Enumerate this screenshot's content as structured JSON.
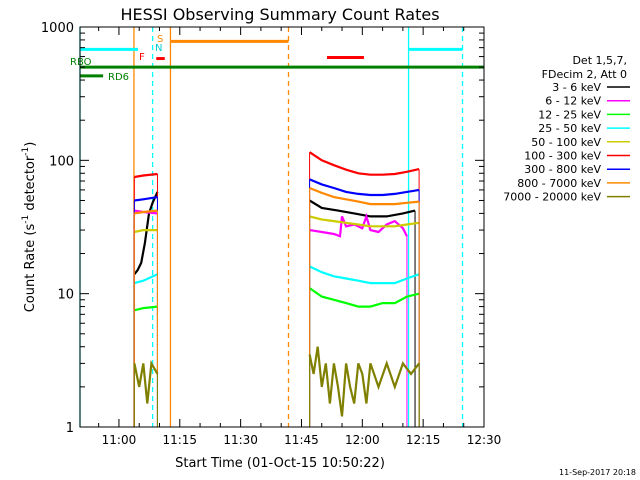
{
  "chart_data": {
    "type": "line",
    "title": "HESSI Observing Summary Count Rates",
    "xlabel": "Start Time (01-Oct-15 10:50:22)",
    "ylabel": "Count Rate (s⁻¹ detector⁻¹)",
    "ylabel_parts": {
      "base": "Count Rate (s",
      "sup1": "-1",
      "mid": " detector",
      "sup2": "-1",
      "end": ")"
    },
    "y_scale": "log",
    "ylim": [
      1,
      1000
    ],
    "xlim_min": [
      50.4,
      150
    ],
    "x_ticks": [
      {
        "min": 60,
        "label": "11:00"
      },
      {
        "min": 75,
        "label": "11:15"
      },
      {
        "min": 90,
        "label": "11:30"
      },
      {
        "min": 105,
        "label": "11:45"
      },
      {
        "min": 120,
        "label": "12:00"
      },
      {
        "min": 135,
        "label": "12:15"
      },
      {
        "min": 150,
        "label": "12:30"
      }
    ],
    "y_ticks": [
      {
        "v": 1,
        "label": "1"
      },
      {
        "v": 10,
        "label": "10"
      },
      {
        "v": 100,
        "label": "100"
      },
      {
        "v": 1000,
        "label": "1000"
      }
    ],
    "legend": {
      "header": [
        "Det 1,5,7,",
        "FDecim 2, Att 0"
      ],
      "position": "right"
    },
    "series": [
      {
        "name": "3 - 6 keV",
        "color": "#000000",
        "segs": [
          [
            [
              63.8,
              14
            ],
            [
              64.6,
              15
            ],
            [
              65.5,
              17
            ],
            [
              66.4,
              24
            ],
            [
              67.4,
              40
            ],
            [
              68.3,
              48
            ],
            [
              69.5,
              58
            ]
          ],
          [
            [
              107,
              50
            ],
            [
              110,
              44
            ],
            [
              114,
              42
            ],
            [
              118,
              40
            ],
            [
              122,
              38
            ],
            [
              126,
              38
            ],
            [
              130,
              40
            ],
            [
              133,
              42
            ]
          ]
        ]
      },
      {
        "name": "6 - 12 keV",
        "color": "#ff00ff",
        "segs": [
          [
            [
              63.8,
              42
            ],
            [
              66,
              41
            ],
            [
              69.5,
              40
            ]
          ],
          [
            [
              107,
              30
            ],
            [
              110,
              29
            ],
            [
              113,
              28
            ],
            [
              114.5,
              27
            ],
            [
              115,
              38
            ],
            [
              116,
              32
            ],
            [
              118,
              33
            ],
            [
              120,
              31
            ],
            [
              121,
              38
            ],
            [
              122,
              30
            ],
            [
              124,
              29
            ],
            [
              126,
              33
            ],
            [
              128,
              35
            ],
            [
              130,
              31
            ],
            [
              131,
              27
            ]
          ]
        ]
      },
      {
        "name": "12 - 25 keV",
        "color": "#00ff00",
        "segs": [
          [
            [
              63.8,
              7.5
            ],
            [
              66,
              7.8
            ],
            [
              69.5,
              8
            ]
          ],
          [
            [
              107,
              11
            ],
            [
              110,
              9.5
            ],
            [
              113,
              9
            ],
            [
              116,
              8.5
            ],
            [
              119,
              8
            ],
            [
              122,
              8
            ],
            [
              125,
              8.5
            ],
            [
              128,
              8.5
            ],
            [
              131,
              9.5
            ],
            [
              134,
              10
            ]
          ]
        ]
      },
      {
        "name": "25 - 50 keV",
        "color": "#00ffff",
        "segs": [
          [
            [
              63.8,
              12
            ],
            [
              66,
              12.5
            ],
            [
              69.5,
              14
            ]
          ],
          [
            [
              107,
              16
            ],
            [
              110,
              14.5
            ],
            [
              113,
              13.5
            ],
            [
              116,
              13
            ],
            [
              119,
              12.5
            ],
            [
              122,
              12
            ],
            [
              125,
              12
            ],
            [
              128,
              12
            ],
            [
              131,
              13
            ],
            [
              134,
              14
            ]
          ]
        ]
      },
      {
        "name": "50 - 100 keV",
        "color": "#cccc00",
        "segs": [
          [
            [
              63.8,
              29
            ],
            [
              66,
              30
            ],
            [
              69.5,
              30
            ]
          ],
          [
            [
              107,
              38
            ],
            [
              110,
              36
            ],
            [
              113,
              35
            ],
            [
              116,
              34
            ],
            [
              119,
              33
            ],
            [
              122,
              32
            ],
            [
              125,
              32
            ],
            [
              128,
              32
            ],
            [
              131,
              33
            ],
            [
              134,
              34
            ]
          ]
        ]
      },
      {
        "name": "100 - 300 keV",
        "color": "#ff0000",
        "segs": [
          [
            [
              63.8,
              75
            ],
            [
              66,
              77
            ],
            [
              69.5,
              79
            ]
          ],
          [
            [
              107,
              115
            ],
            [
              110,
              100
            ],
            [
              113,
              92
            ],
            [
              116,
              85
            ],
            [
              119,
              80
            ],
            [
              122,
              78
            ],
            [
              125,
              78
            ],
            [
              128,
              79
            ],
            [
              131,
              82
            ],
            [
              134,
              86
            ]
          ]
        ]
      },
      {
        "name": "300 - 800 keV",
        "color": "#0000ff",
        "segs": [
          [
            [
              63.8,
              50
            ],
            [
              66,
              51
            ],
            [
              69.5,
              53
            ]
          ],
          [
            [
              107,
              72
            ],
            [
              110,
              66
            ],
            [
              113,
              62
            ],
            [
              116,
              58
            ],
            [
              119,
              56
            ],
            [
              122,
              55
            ],
            [
              125,
              55
            ],
            [
              128,
              56
            ],
            [
              131,
              58
            ],
            [
              134,
              60
            ]
          ]
        ]
      },
      {
        "name": "800 - 7000 keV",
        "color": "#ff8800",
        "segs": [
          [
            [
              63.8,
              40
            ],
            [
              66,
              41
            ],
            [
              69.5,
              42
            ]
          ],
          [
            [
              107,
              62
            ],
            [
              110,
              57
            ],
            [
              113,
              53
            ],
            [
              116,
              51
            ],
            [
              119,
              49
            ],
            [
              122,
              47
            ],
            [
              125,
              47
            ],
            [
              128,
              47
            ],
            [
              131,
              48
            ],
            [
              134,
              49
            ]
          ]
        ]
      },
      {
        "name": "7000 - 20000 keV",
        "color": "#808000",
        "segs": [
          [
            [
              63.8,
              3
            ],
            [
              65,
              2
            ],
            [
              66,
              3
            ],
            [
              67,
              1.5
            ],
            [
              68,
              3
            ],
            [
              69.5,
              2.5
            ]
          ],
          [
            [
              107,
              3.5
            ],
            [
              108,
              2.5
            ],
            [
              109,
              4
            ],
            [
              110,
              2
            ],
            [
              111,
              3
            ],
            [
              112,
              1.5
            ],
            [
              113,
              3
            ],
            [
              114,
              2
            ],
            [
              115,
              1.2
            ],
            [
              116,
              3
            ],
            [
              117,
              2
            ],
            [
              118,
              1.5
            ],
            [
              119,
              3
            ],
            [
              120,
              2.5
            ],
            [
              121,
              1.5
            ],
            [
              122,
              3
            ],
            [
              124,
              2
            ],
            [
              126,
              3
            ],
            [
              128,
              2
            ],
            [
              130,
              3
            ],
            [
              132,
              2.5
            ],
            [
              134,
              3
            ]
          ]
        ]
      }
    ],
    "flags": {
      "top_labels": [
        {
          "text": "S",
          "color": "#ff8800"
        },
        {
          "text": "N",
          "color": "#00cccc"
        },
        {
          "text": "F",
          "color": "#ff0000"
        }
      ],
      "rbo_label": "RBO",
      "rd6_label": "RD6",
      "rbo_line": {
        "x": [
          50.4,
          150
        ],
        "y": 500,
        "color": "#008000"
      },
      "rd6_line": {
        "x": [
          50.4,
          56.1
        ],
        "y": 430,
        "color": "#008000"
      },
      "cyan_bars": [
        {
          "x": [
            50.4,
            64.7
          ],
          "y": 680
        },
        {
          "x": [
            131.4,
            144.7
          ],
          "y": 680
        }
      ],
      "orange_bars": [
        {
          "x": [
            72.7,
            101.8
          ],
          "y": 780
        }
      ],
      "red_bars": [
        {
          "x": [
            69.2,
            71.3
          ],
          "y": 580
        },
        {
          "x": [
            111.3,
            120.4
          ],
          "y": 590
        }
      ],
      "vlines": [
        {
          "x": 50.4,
          "color": "#00ffff",
          "style": "solid"
        },
        {
          "x": 63.7,
          "color": "#ff8800",
          "style": "solid"
        },
        {
          "x": 68.3,
          "color": "#00ffff",
          "style": "dashed"
        },
        {
          "x": 72.7,
          "color": "#ff8800",
          "style": "solid"
        },
        {
          "x": 101.8,
          "color": "#ff8800",
          "style": "dashed"
        },
        {
          "x": 131.4,
          "color": "#00ffff",
          "style": "solid"
        },
        {
          "x": 144.7,
          "color": "#00ffff",
          "style": "dashed"
        }
      ]
    },
    "footer_timestamp": "11-Sep-2017 20:18"
  }
}
